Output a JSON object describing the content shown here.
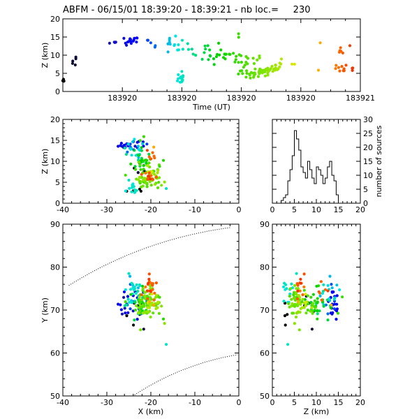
{
  "title": "ABFM - 06/15/01 18:39:20 - 18:39:21 - nb loc.=     230",
  "chart_data": [
    {
      "id": "time-height",
      "type": "scatter",
      "xlabel": "Time (UT)",
      "ylabel": "Z (km)",
      "xlim": [
        0,
        1
      ],
      "ylim": [
        0,
        20
      ],
      "xticks": [
        0.2,
        0.4,
        0.6,
        0.8,
        1.0
      ],
      "xtick_labels": [
        "183920",
        "183920",
        "183920",
        "183920",
        "183921"
      ],
      "yticks": [
        0,
        5,
        10,
        15,
        20
      ],
      "color_scale": "time (black → blue → cyan → green → yellow → orange → red)",
      "clusters": [
        {
          "t": 0.003,
          "z": 2.8,
          "n": 4,
          "sx": 0.003,
          "sz": 0.6
        },
        {
          "t": 0.03,
          "z": 8.0,
          "n": 2,
          "sx": 0.003,
          "sz": 0.4
        },
        {
          "t": 0.045,
          "z": 10.6,
          "n": 2,
          "sx": 0.004,
          "sz": 0.6
        },
        {
          "t": 0.045,
          "z": 7.2,
          "n": 1,
          "sx": 0.002,
          "sz": 0.2
        },
        {
          "t": 0.17,
          "z": 13.4,
          "n": 4,
          "sx": 0.008,
          "sz": 0.3
        },
        {
          "t": 0.23,
          "z": 14.0,
          "n": 14,
          "sx": 0.012,
          "sz": 0.5
        },
        {
          "t": 0.21,
          "z": 12.8,
          "n": 2,
          "sx": 0.004,
          "sz": 0.3
        },
        {
          "t": 0.29,
          "z": 13.8,
          "n": 3,
          "sx": 0.005,
          "sz": 0.4
        },
        {
          "t": 0.31,
          "z": 12.4,
          "n": 2,
          "sx": 0.004,
          "sz": 0.4
        },
        {
          "t": 0.36,
          "z": 12.5,
          "n": 6,
          "sx": 0.015,
          "sz": 1.3
        },
        {
          "t": 0.4,
          "z": 12.0,
          "n": 10,
          "sx": 0.018,
          "sz": 1.5
        },
        {
          "t": 0.395,
          "z": 3.8,
          "n": 12,
          "sx": 0.007,
          "sz": 1.0
        },
        {
          "t": 0.48,
          "z": 11.5,
          "n": 12,
          "sx": 0.03,
          "sz": 1.2
        },
        {
          "t": 0.55,
          "z": 9.5,
          "n": 24,
          "sx": 0.04,
          "sz": 0.9
        },
        {
          "t": 0.59,
          "z": 15.2,
          "n": 2,
          "sx": 0.004,
          "sz": 0.4
        },
        {
          "t": 0.62,
          "z": 8.4,
          "n": 10,
          "sx": 0.02,
          "sz": 0.8
        },
        {
          "t": 0.64,
          "z": 5.0,
          "n": 20,
          "sx": 0.025,
          "sz": 0.5
        },
        {
          "t": 0.67,
          "z": 5.4,
          "n": 16,
          "sx": 0.02,
          "sz": 0.6
        },
        {
          "t": 0.7,
          "z": 6.2,
          "n": 14,
          "sx": 0.02,
          "sz": 0.7
        },
        {
          "t": 0.74,
          "z": 7.3,
          "n": 6,
          "sx": 0.012,
          "sz": 0.5
        },
        {
          "t": 0.775,
          "z": 7.7,
          "n": 2,
          "sx": 0.004,
          "sz": 0.3
        },
        {
          "t": 0.86,
          "z": 5.7,
          "n": 1,
          "sx": 0.002,
          "sz": 0.2
        },
        {
          "t": 0.865,
          "z": 13.7,
          "n": 1,
          "sx": 0.002,
          "sz": 0.2
        },
        {
          "t": 0.935,
          "z": 10.8,
          "n": 5,
          "sx": 0.006,
          "sz": 0.6
        },
        {
          "t": 0.935,
          "z": 6.0,
          "n": 10,
          "sx": 0.012,
          "sz": 0.8
        },
        {
          "t": 0.965,
          "z": 12.6,
          "n": 1,
          "sx": 0.002,
          "sz": 0.2
        },
        {
          "t": 0.97,
          "z": 5.9,
          "n": 3,
          "sx": 0.003,
          "sz": 0.4
        }
      ]
    },
    {
      "id": "xz-view",
      "type": "scatter",
      "ylabel": "Z (km)",
      "xlim": [
        -40,
        0
      ],
      "ylim": [
        0,
        20
      ],
      "xticks": [
        -40,
        -30,
        -20,
        -10,
        0
      ],
      "yticks": [
        0,
        5,
        10,
        15,
        20
      ]
    },
    {
      "id": "altitude-histogram",
      "type": "bar",
      "ylabel": "number of sources",
      "xlim": [
        0,
        20
      ],
      "ylim": [
        0,
        30
      ],
      "xticks": [
        0,
        5,
        10,
        15,
        20
      ],
      "yticks": [
        0,
        5,
        10,
        15,
        20,
        25,
        30
      ],
      "bin_width": 0.5,
      "x": [
        0,
        0.5,
        1,
        1.5,
        2,
        2.5,
        3,
        3.5,
        4,
        4.5,
        5,
        5.5,
        6,
        6.5,
        7,
        7.5,
        8,
        8.5,
        9,
        9.5,
        10,
        10.5,
        11,
        11.5,
        12,
        12.5,
        13,
        13.5,
        14,
        14.5,
        15,
        15.5,
        16,
        16.5,
        17,
        17.5,
        18,
        18.5,
        19,
        19.5
      ],
      "values": [
        0,
        0,
        0,
        0,
        1,
        2,
        3,
        8,
        12,
        17,
        26,
        23,
        19,
        13,
        11,
        9,
        15,
        12,
        9,
        7,
        13,
        12,
        10,
        7,
        9,
        13,
        15,
        10,
        8,
        3,
        0,
        0,
        0,
        0,
        0,
        0,
        0,
        0,
        0,
        0
      ]
    },
    {
      "id": "plan-view",
      "type": "scatter",
      "xlabel": "X (km)",
      "ylabel": "Y (km)",
      "xlim": [
        -40,
        0
      ],
      "ylim": [
        50,
        90
      ],
      "xticks": [
        -40,
        -30,
        -20,
        -10,
        0
      ],
      "yticks": [
        50,
        60,
        70,
        80,
        90
      ]
    },
    {
      "id": "zy-view",
      "type": "scatter",
      "xlabel": "Z (km)",
      "xlim": [
        0,
        20
      ],
      "ylim": [
        50,
        90
      ],
      "xticks": [
        0,
        5,
        10,
        15,
        20
      ],
      "yticks": [
        50,
        60,
        70,
        80,
        90
      ]
    }
  ]
}
